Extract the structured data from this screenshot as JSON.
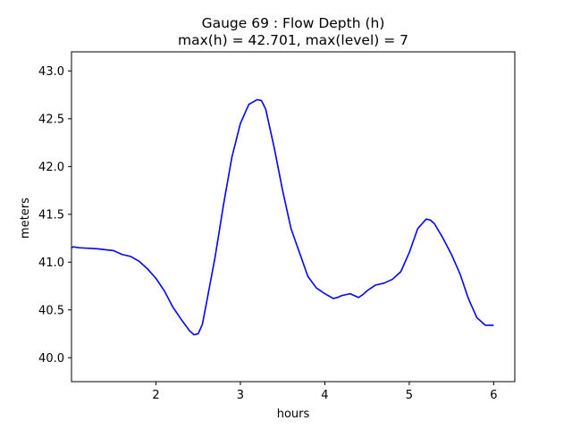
{
  "chart_data": {
    "type": "line",
    "title": "Gauge 69 : Flow Depth (h)",
    "subtitle": "max(h) =  42.701,    max(level) = 7",
    "xlabel": "hours",
    "ylabel": "meters",
    "xlim": [
      1.0,
      6.25
    ],
    "ylim": [
      39.75,
      43.2
    ],
    "xticks": [
      2,
      3,
      4,
      5,
      6
    ],
    "xtick_labels": [
      "2",
      "3",
      "4",
      "5",
      "6"
    ],
    "yticks": [
      40.0,
      40.5,
      41.0,
      41.5,
      42.0,
      42.5,
      43.0
    ],
    "ytick_labels": [
      "40.0",
      "40.5",
      "41.0",
      "41.5",
      "42.0",
      "42.5",
      "43.0"
    ],
    "grid": false,
    "series": [
      {
        "color": "#0000ff",
        "x": [
          1.0,
          1.02,
          1.1,
          1.3,
          1.5,
          1.6,
          1.7,
          1.8,
          1.9,
          2.0,
          2.1,
          2.2,
          2.3,
          2.4,
          2.45,
          2.5,
          2.55,
          2.6,
          2.7,
          2.8,
          2.9,
          3.0,
          3.1,
          3.2,
          3.25,
          3.3,
          3.4,
          3.5,
          3.6,
          3.7,
          3.8,
          3.9,
          4.0,
          4.1,
          4.15,
          4.2,
          4.3,
          4.4,
          4.45,
          4.5,
          4.6,
          4.7,
          4.8,
          4.9,
          5.0,
          5.1,
          5.2,
          5.25,
          5.3,
          5.4,
          5.5,
          5.6,
          5.7,
          5.8,
          5.9,
          5.95,
          6.0
        ],
        "y": [
          41.15,
          41.16,
          41.15,
          41.14,
          41.12,
          41.08,
          41.06,
          41.01,
          40.93,
          40.83,
          40.7,
          40.53,
          40.4,
          40.28,
          40.24,
          40.25,
          40.35,
          40.58,
          41.05,
          41.6,
          42.1,
          42.45,
          42.65,
          42.7,
          42.69,
          42.6,
          42.2,
          41.75,
          41.35,
          41.1,
          40.85,
          40.73,
          40.67,
          40.62,
          40.63,
          40.65,
          40.67,
          40.63,
          40.66,
          40.7,
          40.76,
          40.78,
          40.82,
          40.9,
          41.1,
          41.35,
          41.45,
          41.44,
          41.4,
          41.25,
          41.08,
          40.88,
          40.62,
          40.42,
          40.34,
          40.34,
          40.34
        ]
      }
    ]
  }
}
